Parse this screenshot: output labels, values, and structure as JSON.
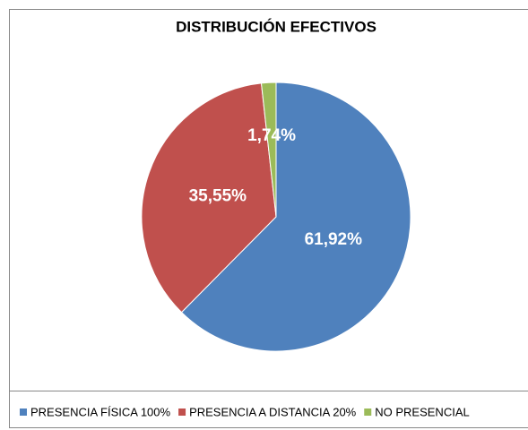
{
  "chart_data": {
    "type": "pie",
    "title": "DISTRIBUCIÓN EFECTIVOS",
    "categories": [
      "PRESENCIA FÍSICA 100%",
      "PRESENCIA A DISTANCIA 20%",
      "NO PRESENCIAL"
    ],
    "values": [
      61.92,
      35.55,
      1.74
    ],
    "value_labels": [
      "61,92%",
      "35,55%",
      "1,74%"
    ],
    "colors": [
      "#4f81bd",
      "#c0504d",
      "#9bbb59"
    ],
    "legend": "bottom"
  }
}
